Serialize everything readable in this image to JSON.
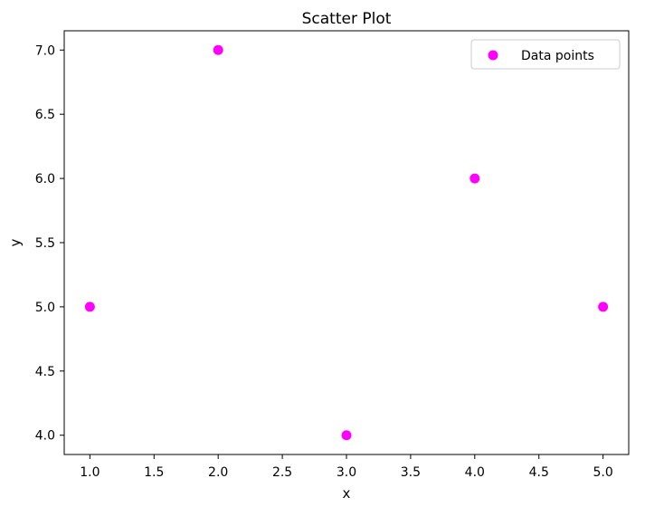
{
  "chart_data": {
    "type": "scatter",
    "title": "Scatter Plot",
    "xlabel": "x",
    "ylabel": "y",
    "xlim": [
      0.8,
      5.2
    ],
    "ylim": [
      3.85,
      7.15
    ],
    "x_ticks": [
      1.0,
      1.5,
      2.0,
      2.5,
      3.0,
      3.5,
      4.0,
      4.5,
      5.0
    ],
    "y_ticks": [
      4.0,
      4.5,
      5.0,
      5.5,
      6.0,
      6.5,
      7.0
    ],
    "x_tick_labels": [
      "1.0",
      "1.5",
      "2.0",
      "2.5",
      "3.0",
      "3.5",
      "4.0",
      "4.5",
      "5.0"
    ],
    "y_tick_labels": [
      "4.0",
      "4.5",
      "5.0",
      "5.5",
      "6.0",
      "6.5",
      "7.0"
    ],
    "grid": false,
    "legend": {
      "position": "top-right",
      "entries": [
        "Data points"
      ]
    },
    "series": [
      {
        "name": "Data points",
        "color": "#ff00ff",
        "x": [
          1,
          2,
          3,
          4,
          5
        ],
        "y": [
          5,
          7,
          4,
          6,
          5
        ]
      }
    ]
  }
}
